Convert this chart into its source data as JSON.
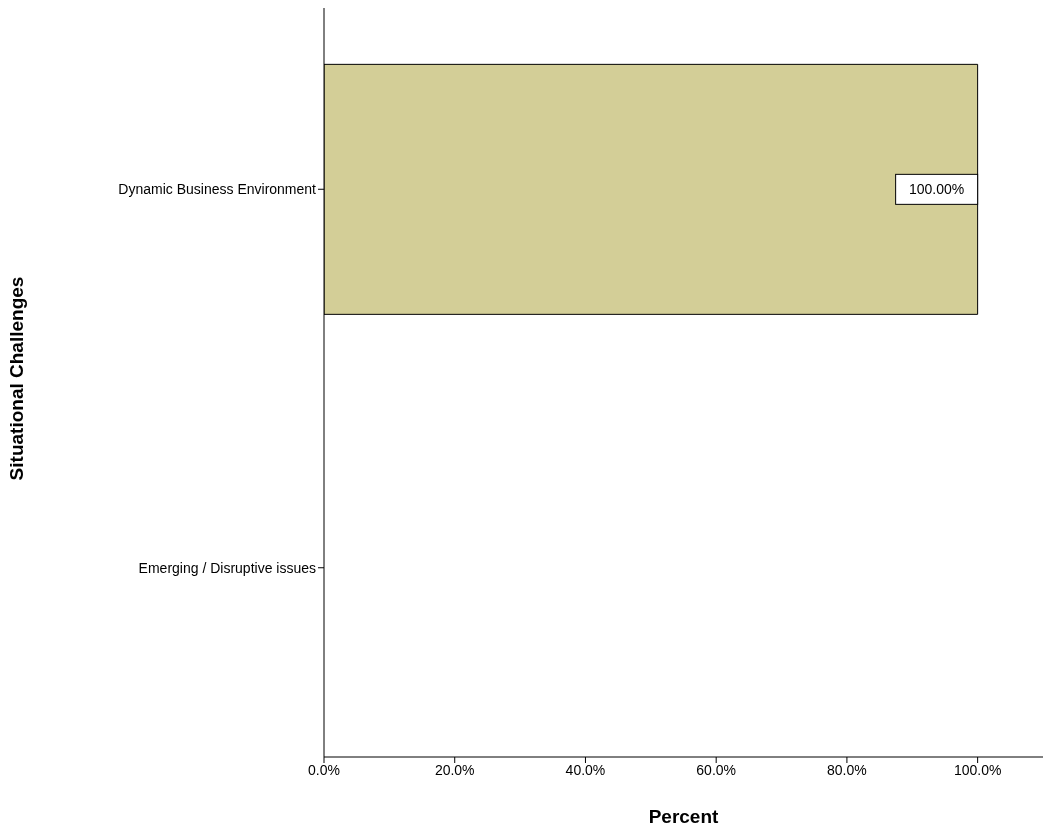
{
  "chart_data": {
    "type": "bar",
    "orientation": "horizontal",
    "xlabel": "Percent",
    "ylabel": "Situational Challenges",
    "categories": [
      "Dynamic Business Environment",
      "Emerging / Disruptive issues"
    ],
    "values": [
      100,
      0
    ],
    "value_labels": [
      "100.00%",
      null
    ],
    "color": "#d3ce97",
    "xlim": [
      0,
      110
    ],
    "xticks": [
      {
        "value": 0,
        "label": "0.0%"
      },
      {
        "value": 20,
        "label": "20.0%"
      },
      {
        "value": 40,
        "label": "40.0%"
      },
      {
        "value": 60,
        "label": "60.0%"
      },
      {
        "value": 80,
        "label": "80.0%"
      },
      {
        "value": 100,
        "label": "100.0%"
      }
    ],
    "grid": false,
    "legend": false
  }
}
